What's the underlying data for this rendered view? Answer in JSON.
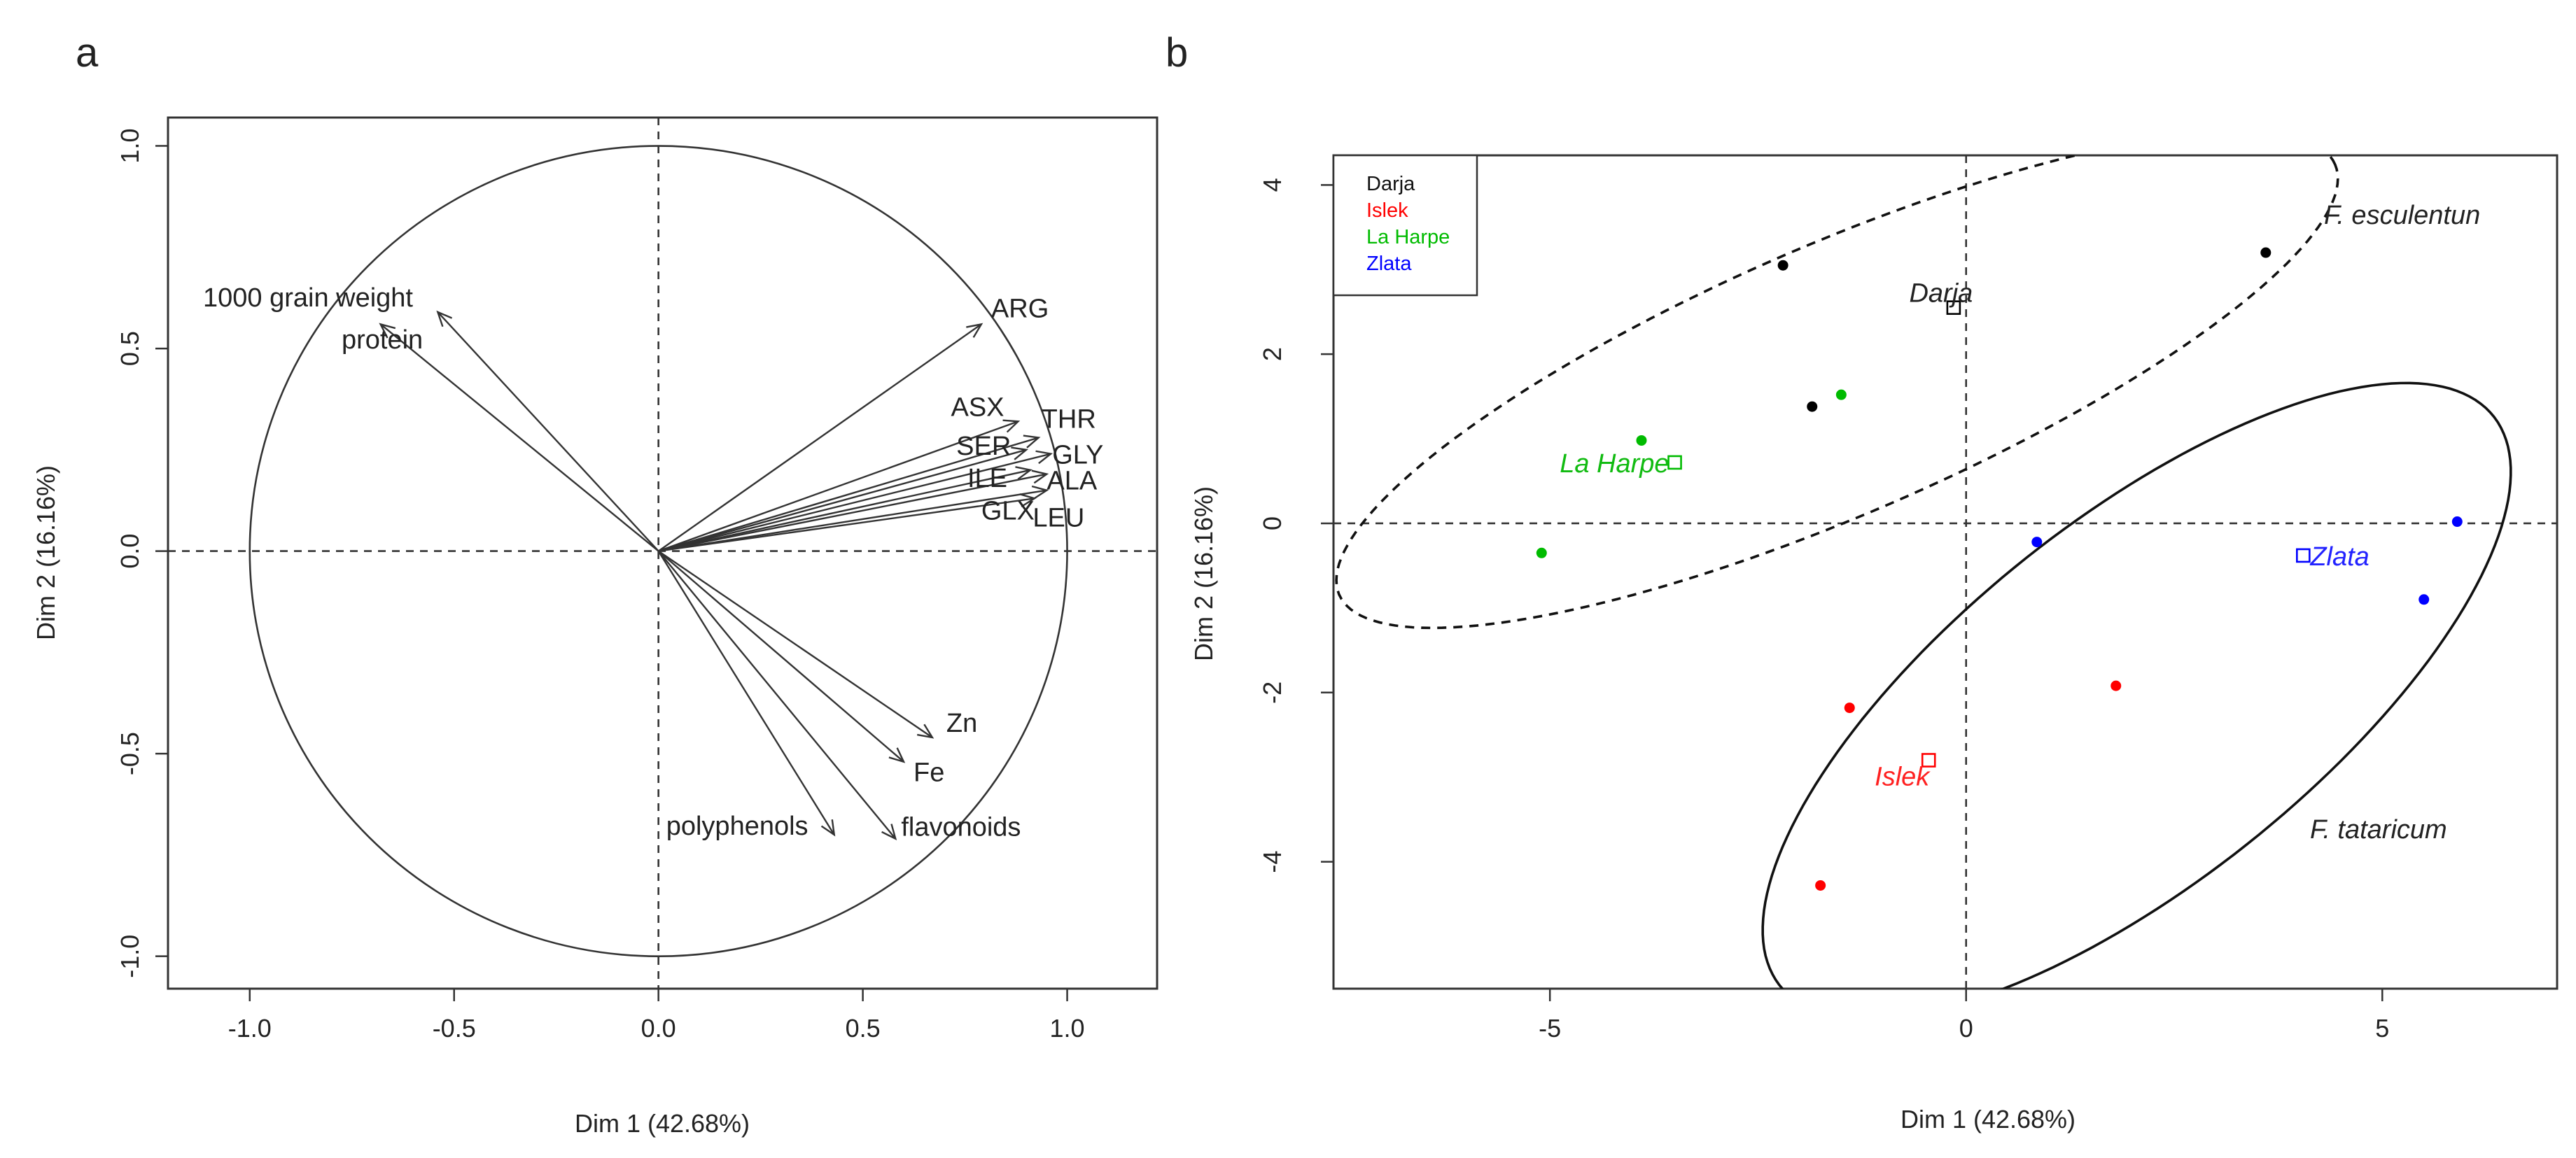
{
  "chart_data": [
    {
      "panel": "a",
      "type": "scatter",
      "subtype": "pca-correlation-circle",
      "xlabel": "Dim 1 (42.68%)",
      "ylabel": "Dim 2 (16.16%)",
      "xlim": [
        -1.2,
        1.22
      ],
      "ylim": [
        -1.08,
        1.07
      ],
      "xticks": [
        -1.0,
        -0.5,
        0.0,
        0.5,
        1.0
      ],
      "yticks": [
        -1.0,
        -0.5,
        0.0,
        0.5,
        1.0
      ],
      "xtick_labels": [
        "-1.0",
        "-0.5",
        "0.0",
        "0.5",
        "1.0"
      ],
      "ytick_labels": [
        "-1.0",
        "-0.5",
        "0.0",
        "0.5",
        "1.0"
      ],
      "vectors": [
        {
          "name": "1000 grain weight",
          "x": -0.54,
          "y": 0.59
        },
        {
          "name": "protein",
          "x": -0.68,
          "y": 0.56
        },
        {
          "name": "ARG",
          "x": 0.79,
          "y": 0.56
        },
        {
          "name": "ASX",
          "x": 0.88,
          "y": 0.32
        },
        {
          "name": "THR",
          "x": 0.93,
          "y": 0.28
        },
        {
          "name": "SER",
          "x": 0.9,
          "y": 0.25
        },
        {
          "name": "GLY",
          "x": 0.96,
          "y": 0.24
        },
        {
          "name": "ILE",
          "x": 0.91,
          "y": 0.2
        },
        {
          "name": "ALA",
          "x": 0.95,
          "y": 0.19
        },
        {
          "name": "GLX",
          "x": 0.92,
          "y": 0.13
        },
        {
          "name": "LEU",
          "x": 0.95,
          "y": 0.15
        },
        {
          "name": "Zn",
          "x": 0.67,
          "y": -0.46
        },
        {
          "name": "Fe",
          "x": 0.6,
          "y": -0.52
        },
        {
          "name": "polyphenols",
          "x": 0.43,
          "y": -0.7
        },
        {
          "name": "flavonoids",
          "x": 0.58,
          "y": -0.71
        }
      ]
    },
    {
      "panel": "b",
      "type": "scatter",
      "subtype": "pca-individuals",
      "xlabel": "Dim 1 (42.68%)",
      "ylabel": "Dim 2 (16.16%)",
      "xlim": [
        -7.6,
        7.1
      ],
      "ylim": [
        -5.5,
        4.35
      ],
      "xticks": [
        -5,
        0,
        5
      ],
      "yticks": [
        -4,
        -2,
        0,
        2,
        4
      ],
      "xtick_labels": [
        "-5",
        "0",
        "5"
      ],
      "ytick_labels": [
        "-4",
        "-2",
        "0",
        "2",
        "4"
      ],
      "legend": {
        "position": "top-left",
        "entries": [
          {
            "label": "Darja",
            "color": "#000000"
          },
          {
            "label": "Islek",
            "color": "#ff0000"
          },
          {
            "label": "La Harpe",
            "color": "#00bb00"
          },
          {
            "label": "Zlata",
            "color": "#0000ff"
          }
        ]
      },
      "series": [
        {
          "name": "Darja",
          "color": "#000000",
          "points": [
            [
              -2.2,
              3.05
            ],
            [
              3.6,
              3.2
            ],
            [
              -1.85,
              1.38
            ]
          ],
          "centroid": [
            -0.15,
            2.55
          ]
        },
        {
          "name": "Islek",
          "color": "#ff0000",
          "points": [
            [
              -1.4,
              -2.18
            ],
            [
              1.8,
              -1.92
            ],
            [
              -1.75,
              -4.28
            ]
          ],
          "centroid": [
            -0.45,
            -2.8
          ]
        },
        {
          "name": "La Harpe",
          "color": "#00bb00",
          "points": [
            [
              -3.9,
              0.98
            ],
            [
              -1.5,
              1.52
            ],
            [
              -5.1,
              -0.35
            ]
          ],
          "centroid": [
            -3.5,
            0.72
          ]
        },
        {
          "name": "Zlata",
          "color": "#0000ff",
          "points": [
            [
              0.85,
              -0.22
            ],
            [
              5.9,
              0.02
            ],
            [
              5.5,
              -0.9
            ]
          ],
          "centroid": [
            4.05,
            -0.38
          ]
        }
      ],
      "ellipses": [
        {
          "label": "F. esculentun",
          "style": "dashed",
          "cx": -1.55,
          "cy": 1.7,
          "rx": 6.5,
          "ry": 1.6,
          "angle_deg": 23
        },
        {
          "label": "F. tataricum",
          "style": "solid",
          "cx": 2.05,
          "cy": -2.1,
          "rx": 5.45,
          "ry": 2.15,
          "angle_deg": 38
        }
      ]
    }
  ],
  "labels": {
    "panel_a": "a",
    "panel_b": "b",
    "centroid_darja": "Darja",
    "centroid_islek": "Islek",
    "centroid_laharpe": "La Harpe",
    "centroid_zlata": "Zlata",
    "species_1": "F. esculentun",
    "species_2": "F. tataricum"
  }
}
